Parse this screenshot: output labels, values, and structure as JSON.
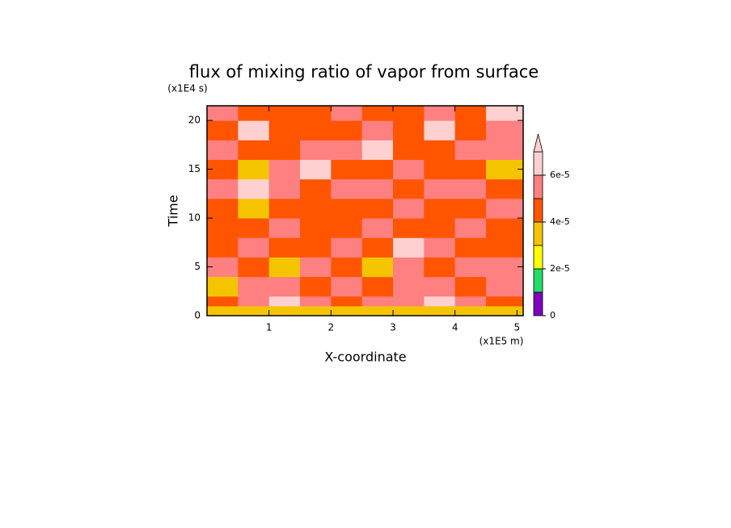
{
  "chart_data": {
    "type": "contour",
    "title": "flux of mixing ratio of vapor from surface",
    "x_label": "X-coordinate",
    "y_label": "Time",
    "x_unit": "(x1E5 m)",
    "y_unit": "(x1E4 s)",
    "xlim": [
      0,
      5.1
    ],
    "ylim": [
      0,
      21.5
    ],
    "xticks": [
      1,
      2,
      3,
      4,
      5
    ],
    "yticks": [
      0,
      5,
      10,
      15,
      20
    ],
    "x": [
      0,
      0.5,
      1,
      1.5,
      2,
      2.5,
      3,
      3.5,
      4,
      4.5,
      5.1
    ],
    "y": [
      0,
      0.5,
      1,
      2,
      4,
      6,
      8,
      10,
      12,
      14,
      16,
      18,
      20,
      21.5
    ],
    "z": [
      [
        3.5e-05,
        3.5e-05,
        3.5e-05,
        3.5e-05,
        3.5e-05,
        3.5e-05,
        3.5e-05,
        3.5e-05,
        3.5e-05,
        3.5e-05
      ],
      [
        3.5e-05,
        3.5e-05,
        3.5e-05,
        3.5e-05,
        3.5e-05,
        3.5e-05,
        3.5e-05,
        3.5e-05,
        3.5e-05,
        3.5e-05
      ],
      [
        4.5e-05,
        5.5e-05,
        6.5e-05,
        5.5e-05,
        4.5e-05,
        5.5e-05,
        5.5e-05,
        6.5e-05,
        5.5e-05,
        4.5e-05
      ],
      [
        3.5e-05,
        5.5e-05,
        5.5e-05,
        4.5e-05,
        5.5e-05,
        4.5e-05,
        5.5e-05,
        5.5e-05,
        4.5e-05,
        5.5e-05
      ],
      [
        5.5e-05,
        4.5e-05,
        3.5e-05,
        5.5e-05,
        4.5e-05,
        3.5e-05,
        5.5e-05,
        4.5e-05,
        5.5e-05,
        5.5e-05
      ],
      [
        4.5e-05,
        5.5e-05,
        4.5e-05,
        4.5e-05,
        5.5e-05,
        4.5e-05,
        6.5e-05,
        5.5e-05,
        4.5e-05,
        4.5e-05
      ],
      [
        4.5e-05,
        4.5e-05,
        5.5e-05,
        4.5e-05,
        4.5e-05,
        5.5e-05,
        4.5e-05,
        4.5e-05,
        5.5e-05,
        4.5e-05
      ],
      [
        4.5e-05,
        3.5e-05,
        4.5e-05,
        4.5e-05,
        4.5e-05,
        4.5e-05,
        5.5e-05,
        4.5e-05,
        4.5e-05,
        5.5e-05
      ],
      [
        5.5e-05,
        6.5e-05,
        5.5e-05,
        4.5e-05,
        5.5e-05,
        5.5e-05,
        4.5e-05,
        5.5e-05,
        5.5e-05,
        4.5e-05
      ],
      [
        4.5e-05,
        3.5e-05,
        5.5e-05,
        6.5e-05,
        4.5e-05,
        4.5e-05,
        5.5e-05,
        4.5e-05,
        4.5e-05,
        3.5e-05
      ],
      [
        5.5e-05,
        4.5e-05,
        4.5e-05,
        5.5e-05,
        5.5e-05,
        6.5e-05,
        4.5e-05,
        4.5e-05,
        5.5e-05,
        5.5e-05
      ],
      [
        4.5e-05,
        6.5e-05,
        4.5e-05,
        4.5e-05,
        4.5e-05,
        5.5e-05,
        4.5e-05,
        6.5e-05,
        4.5e-05,
        5.5e-05
      ],
      [
        5.5e-05,
        4.5e-05,
        4.5e-05,
        4.5e-05,
        5.5e-05,
        4.5e-05,
        4.5e-05,
        5.5e-05,
        4.5e-05,
        6.5e-05
      ]
    ],
    "levels": [
      0,
      1e-05,
      2e-05,
      3e-05,
      4e-05,
      5e-05,
      6e-05,
      7e-05
    ],
    "colors": [
      "#7f00bf",
      "#22dd66",
      "#ffff00",
      "#f5c400",
      "#ff5500",
      "#ff8080",
      "#ffd0d0",
      "#ffd0d0"
    ],
    "colorbar_ticks": [
      0,
      {
        "value": 2e-05,
        "label": "2e-5"
      },
      {
        "value": 4e-05,
        "label": "4e-5"
      },
      {
        "value": 6e-05,
        "label": "6e-5"
      }
    ]
  }
}
